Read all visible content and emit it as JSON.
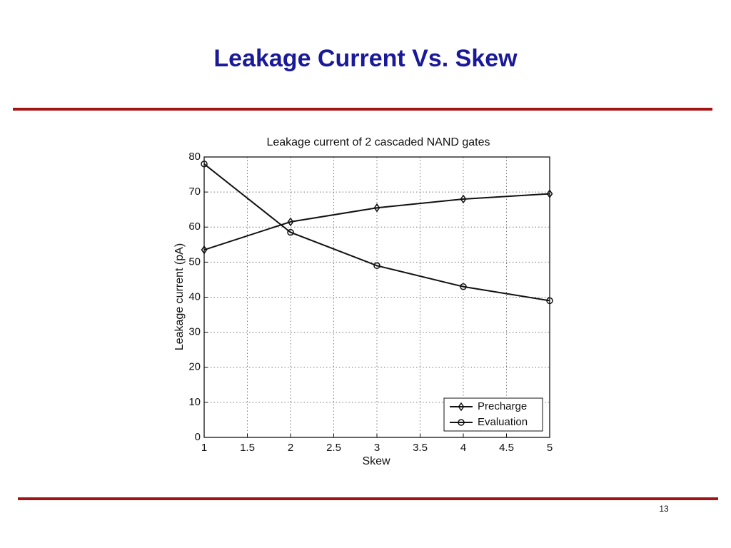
{
  "slide": {
    "title": "Leakage Current Vs. Skew",
    "page_number": "13"
  },
  "chart_data": {
    "type": "line",
    "title": "Leakage current of 2 cascaded NAND gates",
    "x_label": "Skew",
    "y_label": "Leakage current (pA)",
    "x": [
      1,
      2,
      3,
      4,
      5
    ],
    "series": [
      {
        "name": "Precharge",
        "color": "#111111",
        "marker": "diamond",
        "values": [
          53.5,
          61.5,
          65.5,
          68,
          69.5
        ]
      },
      {
        "name": "Evaluation",
        "color": "#111111",
        "marker": "circle",
        "values": [
          78,
          58.5,
          49,
          43,
          39
        ]
      }
    ],
    "xlim": [
      1,
      5
    ],
    "xticks": [
      1,
      1.5,
      2,
      2.5,
      3,
      3.5,
      4,
      4.5,
      5
    ],
    "ylim": [
      0,
      80
    ],
    "yticks": [
      0,
      10,
      20,
      30,
      40,
      50,
      60,
      70,
      80
    ],
    "grid": true,
    "legend": "lower right"
  }
}
